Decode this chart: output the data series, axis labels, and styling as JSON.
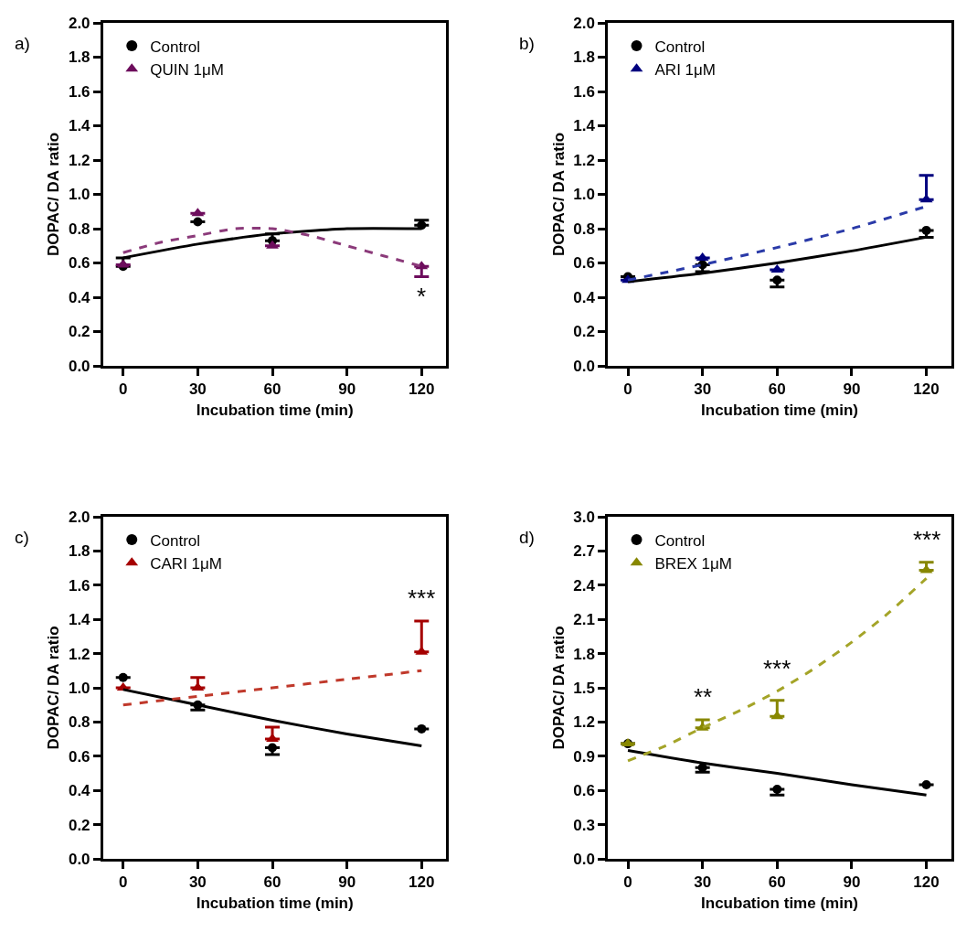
{
  "chart_data": [
    {
      "type": "scatter",
      "title": "a)",
      "xlabel": "Incubation time (min)",
      "ylabel": "DOPAC/ DA ratio",
      "x": [
        0,
        30,
        60,
        120
      ],
      "xlim": [
        -8,
        130
      ],
      "xticks": [
        0,
        30,
        60,
        90,
        120
      ],
      "ylim": [
        0,
        2
      ],
      "yticks": [
        {
          "value": 0,
          "label": "0.0"
        },
        {
          "value": 0.2,
          "label": "0.2"
        },
        {
          "value": 0.4,
          "label": "0.4"
        },
        {
          "value": 0.6,
          "label": "0.6"
        },
        {
          "value": 0.8,
          "label": "0.8"
        },
        {
          "value": 1,
          "label": "1.0"
        },
        {
          "value": 1.2,
          "label": "1.2"
        },
        {
          "value": 1.4,
          "label": "1.4"
        },
        {
          "value": 1.6,
          "label": "1.6"
        },
        {
          "value": 1.8,
          "label": "1.8"
        },
        {
          "value": 2,
          "label": "2.0"
        }
      ],
      "grid": false,
      "legend": "top left",
      "series": [
        {
          "name": "Control",
          "marker": "circle",
          "color": "#000000",
          "values": [
            0.58,
            0.84,
            0.73,
            0.82
          ],
          "errors": [
            [
              0.58,
              0.63
            ],
            null,
            [
              0.73,
              0.77
            ],
            [
              0.82,
              0.85
            ]
          ]
        },
        {
          "name": "QUIN 1μM",
          "marker": "triangle",
          "color": "#6d0c5c",
          "values": [
            0.59,
            0.89,
            0.7,
            0.58
          ],
          "errors": [
            null,
            null,
            null,
            [
              0.52,
              0.58
            ]
          ]
        },
        {
          "type": "line",
          "marker": "none",
          "line_style": "solid",
          "color": "#000000",
          "x": [
            0,
            30,
            60,
            90,
            120
          ],
          "values": [
            0.63,
            0.71,
            0.77,
            0.8,
            0.8
          ]
        },
        {
          "type": "line",
          "marker": "none",
          "line_style": "dashed",
          "color": "#8b3a7a",
          "x": [
            0,
            15,
            30,
            45,
            60,
            75,
            90,
            105,
            120
          ],
          "values": [
            0.66,
            0.72,
            0.76,
            0.8,
            0.8,
            0.76,
            0.7,
            0.64,
            0.58
          ]
        }
      ],
      "annotations": [
        {
          "text": "*",
          "x": 120,
          "y": 0.52
        }
      ]
    },
    {
      "type": "scatter",
      "title": "b)",
      "xlabel": "Incubation time (min)",
      "ylabel": "DOPAC/ DA ratio",
      "x": [
        0,
        30,
        60,
        120
      ],
      "xlim": [
        -8,
        130
      ],
      "xticks": [
        0,
        30,
        60,
        90,
        120
      ],
      "ylim": [
        0,
        2
      ],
      "yticks": [
        {
          "value": 0,
          "label": "0.0"
        },
        {
          "value": 0.2,
          "label": "0.2"
        },
        {
          "value": 0.4,
          "label": "0.4"
        },
        {
          "value": 0.6,
          "label": "0.6"
        },
        {
          "value": 0.8,
          "label": "0.8"
        },
        {
          "value": 1,
          "label": "1.0"
        },
        {
          "value": 1.2,
          "label": "1.2"
        },
        {
          "value": 1.4,
          "label": "1.4"
        },
        {
          "value": 1.6,
          "label": "1.6"
        },
        {
          "value": 1.8,
          "label": "1.8"
        },
        {
          "value": 2,
          "label": "2.0"
        }
      ],
      "grid": false,
      "legend": "top left",
      "series": [
        {
          "name": "Control",
          "marker": "circle",
          "color": "#000000",
          "values": [
            0.52,
            0.59,
            0.5,
            0.79
          ],
          "errors": [
            null,
            [
              0.55,
              0.59
            ],
            [
              0.46,
              0.5
            ],
            [
              0.75,
              0.79
            ]
          ]
        },
        {
          "name": "ARI 1μM",
          "marker": "triangle",
          "color": "#00007f",
          "values": [
            0.5,
            0.63,
            0.56,
            0.97
          ],
          "errors": [
            null,
            null,
            null,
            [
              0.97,
              1.11
            ]
          ]
        },
        {
          "type": "line",
          "marker": "none",
          "line_style": "solid",
          "color": "#000000",
          "x": [
            0,
            30,
            60,
            90,
            120
          ],
          "values": [
            0.49,
            0.54,
            0.6,
            0.67,
            0.75
          ]
        },
        {
          "type": "line",
          "marker": "none",
          "line_style": "dashed",
          "color": "#2a3aa8",
          "x": [
            0,
            30,
            60,
            90,
            120
          ],
          "values": [
            0.5,
            0.59,
            0.69,
            0.8,
            0.93
          ]
        }
      ]
    },
    {
      "type": "scatter",
      "title": "c)",
      "xlabel": "Incubation time (min)",
      "ylabel": "DOPAC/ DA ratio",
      "x": [
        0,
        30,
        60,
        120
      ],
      "xlim": [
        -8,
        130
      ],
      "xticks": [
        0,
        30,
        60,
        90,
        120
      ],
      "ylim": [
        0,
        2
      ],
      "yticks": [
        {
          "value": 0,
          "label": "0.0"
        },
        {
          "value": 0.2,
          "label": "0.2"
        },
        {
          "value": 0.4,
          "label": "0.4"
        },
        {
          "value": 0.6,
          "label": "0.6"
        },
        {
          "value": 0.8,
          "label": "0.8"
        },
        {
          "value": 1,
          "label": "1.0"
        },
        {
          "value": 1.2,
          "label": "1.2"
        },
        {
          "value": 1.4,
          "label": "1.4"
        },
        {
          "value": 1.6,
          "label": "1.6"
        },
        {
          "value": 1.8,
          "label": "1.8"
        },
        {
          "value": 2,
          "label": "2.0"
        }
      ],
      "grid": false,
      "legend": "top left",
      "series": [
        {
          "name": "Control",
          "marker": "circle",
          "color": "#000000",
          "values": [
            1.06,
            0.9,
            0.65,
            0.76
          ],
          "errors": [
            null,
            [
              0.87,
              0.9
            ],
            [
              0.61,
              0.65
            ],
            null
          ]
        },
        {
          "name": "CARI 1μM",
          "marker": "triangle",
          "color": "#a50000",
          "values": [
            1.0,
            1.0,
            0.7,
            1.21
          ],
          "errors": [
            null,
            [
              1.0,
              1.06
            ],
            [
              0.7,
              0.77
            ],
            [
              1.21,
              1.39
            ]
          ]
        },
        {
          "type": "line",
          "marker": "none",
          "line_style": "solid",
          "color": "#000000",
          "x": [
            0,
            30,
            60,
            90,
            120
          ],
          "values": [
            0.99,
            0.9,
            0.81,
            0.73,
            0.66
          ]
        },
        {
          "type": "line",
          "marker": "none",
          "line_style": "dashed",
          "color": "#c0392b",
          "x": [
            0,
            30,
            60,
            90,
            120
          ],
          "values": [
            0.9,
            0.95,
            1.0,
            1.05,
            1.1
          ]
        }
      ],
      "annotations": [
        {
          "text": "***",
          "x": 120,
          "y": 1.39
        }
      ]
    },
    {
      "type": "scatter",
      "title": "d)",
      "xlabel": "Incubation time (min)",
      "ylabel": "DOPAC/ DA ratio",
      "x": [
        0,
        30,
        60,
        120
      ],
      "xlim": [
        -8,
        130
      ],
      "xticks": [
        0,
        30,
        60,
        90,
        120
      ],
      "ylim": [
        0,
        3
      ],
      "yticks": [
        {
          "value": 0,
          "label": "0.0"
        },
        {
          "value": 0.3,
          "label": "0.3"
        },
        {
          "value": 0.6,
          "label": "0.6"
        },
        {
          "value": 0.9,
          "label": "0.9"
        },
        {
          "value": 1.2,
          "label": "1.2"
        },
        {
          "value": 1.5,
          "label": "1.5"
        },
        {
          "value": 1.8,
          "label": "1.8"
        },
        {
          "value": 2.1,
          "label": "2.1"
        },
        {
          "value": 2.4,
          "label": "2.4"
        },
        {
          "value": 2.7,
          "label": "2.7"
        },
        {
          "value": 3,
          "label": "3.0"
        }
      ],
      "grid": false,
      "legend": "top left",
      "series": [
        {
          "name": "Control",
          "marker": "circle",
          "color": "#000000",
          "values": [
            1.01,
            0.8,
            0.61,
            0.65
          ],
          "errors": [
            null,
            [
              0.76,
              0.8
            ],
            [
              0.56,
              0.61
            ],
            null
          ]
        },
        {
          "name": "BREX 1μM",
          "marker": "triangle",
          "color": "#878700",
          "values": [
            1.01,
            1.15,
            1.25,
            2.53
          ],
          "errors": [
            null,
            [
              1.15,
              1.22
            ],
            [
              1.25,
              1.39
            ],
            [
              2.53,
              2.6
            ]
          ]
        },
        {
          "type": "line",
          "marker": "none",
          "line_style": "solid",
          "color": "#000000",
          "x": [
            0,
            30,
            60,
            90,
            120
          ],
          "values": [
            0.95,
            0.84,
            0.75,
            0.65,
            0.56
          ]
        },
        {
          "type": "line",
          "marker": "none",
          "line_style": "dashed",
          "color": "#a4a428",
          "x": [
            0,
            15,
            30,
            45,
            60,
            75,
            90,
            105,
            120
          ],
          "values": [
            0.86,
            0.99,
            1.15,
            1.3,
            1.47,
            1.67,
            1.9,
            2.16,
            2.46
          ]
        }
      ],
      "annotations": [
        {
          "text": "**",
          "x": 30,
          "y": 1.22
        },
        {
          "text": "***",
          "x": 60,
          "y": 1.47
        },
        {
          "text": "***",
          "x": 120,
          "y": 2.6
        }
      ]
    }
  ]
}
